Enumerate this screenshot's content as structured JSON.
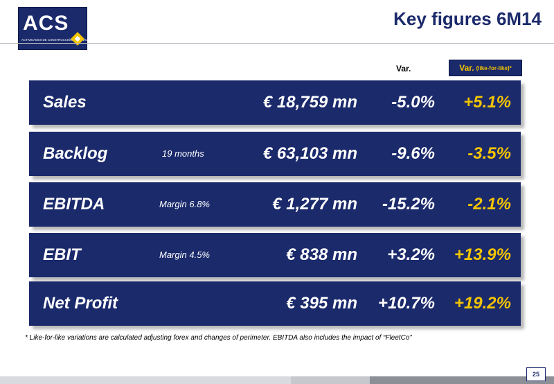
{
  "logo": {
    "text": "ACS",
    "subtitle": "ACTIVIDADES DE CONSTRUCCIÓN Y SERVICIOS"
  },
  "title": "Key figures 6M14",
  "column_headers": {
    "var": "Var.",
    "lfl_main": "Var.",
    "lfl_sub": "(like-for-like)*"
  },
  "rows": [
    {
      "label": "Sales",
      "note": "",
      "amount": "€ 18,759 mn",
      "var": "-5.0%",
      "lfl": "+5.1%"
    },
    {
      "label": "Backlog",
      "note": "19 months",
      "amount": "€ 63,103 mn",
      "var": "-9.6%",
      "lfl": "-3.5%"
    },
    {
      "label": "EBITDA",
      "note": "Margin 6.8%",
      "amount": "€ 1,277 mn",
      "var": "-15.2%",
      "lfl": "-2.1%"
    },
    {
      "label": "EBIT",
      "note": "Margin 4.5%",
      "amount": "€ 838 mn",
      "var": "+3.2%",
      "lfl": "+13.9%"
    },
    {
      "label": "Net Profit",
      "note": "",
      "amount": "€ 395 mn",
      "var": "+10.7%",
      "lfl": "+19.2%"
    }
  ],
  "footnote": "*  Like-for-like variations are calculated adjusting forex and changes of perimeter. EBITDA also includes the impact of “FleetCo”",
  "page_number": "25",
  "colors": {
    "navy": "#1b2a6b",
    "accent_yellow": "#f3c400",
    "white": "#ffffff"
  }
}
